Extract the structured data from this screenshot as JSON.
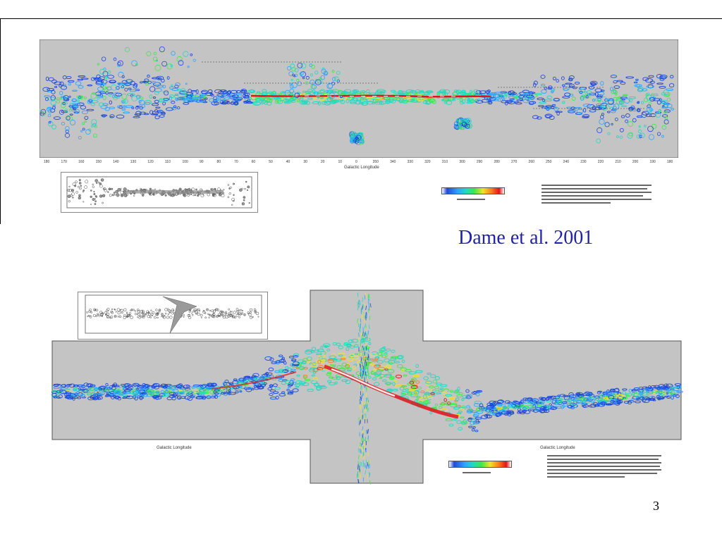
{
  "slide": {
    "citation": "Dame et al. 2001",
    "page_number": "3"
  },
  "colors": {
    "background": "#ffffff",
    "plot_background": "#c4c4c4",
    "citation_text": "#2222a6",
    "co_low": "#1f4bd8",
    "co_mid": "#3ee84a",
    "co_high": "#e3131b"
  },
  "figures": {
    "top": {
      "description_icon": "co-survey-map-icon",
      "x_axis_title": "Galactic Longitude",
      "x_ticks": [
        "180",
        "170",
        "160",
        "150",
        "140",
        "130",
        "120",
        "110",
        "100",
        "90",
        "80",
        "70",
        "60",
        "50",
        "40",
        "30",
        "20",
        "10",
        "0",
        "350",
        "340",
        "330",
        "320",
        "310",
        "300",
        "290",
        "280",
        "270",
        "260",
        "250",
        "240",
        "230",
        "220",
        "210",
        "200",
        "190",
        "180"
      ]
    },
    "bottom": {
      "description_icon": "longitude-velocity-diagram-icon",
      "x_axis_title_left": "Galactic Longitude",
      "x_axis_title_right": "Galactic Longitude"
    }
  }
}
